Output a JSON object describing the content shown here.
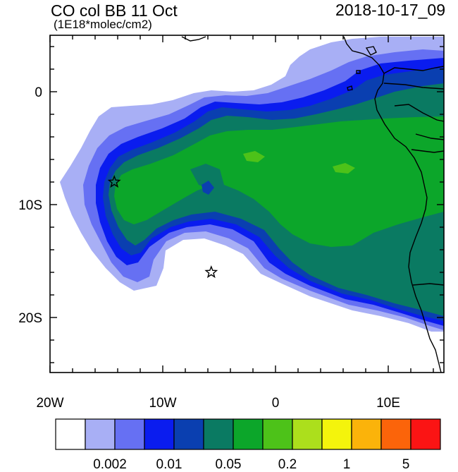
{
  "header": {
    "title": "CO col BB 11 Oct",
    "units": "(1E18*molec/cm2)",
    "datetime": "2018-10-17_09"
  },
  "map": {
    "lat_ticks": [
      "0",
      "10S",
      "20S"
    ],
    "lon_ticks": [
      "20W",
      "10W",
      "0",
      "10E"
    ],
    "markers": [
      {
        "name": "star-marker-west",
        "lon": -14.3,
        "lat": -8.0
      },
      {
        "name": "star-marker-south",
        "lon": -5.7,
        "lat": -16.0
      }
    ]
  },
  "colorbar": {
    "colors": [
      "#ffffff",
      "#a8aff5",
      "#6670f3",
      "#0a1cef",
      "#0a3fb0",
      "#0a7a62",
      "#0ca62a",
      "#4dc219",
      "#acdf1c",
      "#f4f40c",
      "#fbb30a",
      "#fb640a",
      "#fb1414"
    ],
    "labels": [
      "0.002",
      "0.01",
      "0.05",
      "0.2",
      "1",
      "5"
    ]
  }
}
